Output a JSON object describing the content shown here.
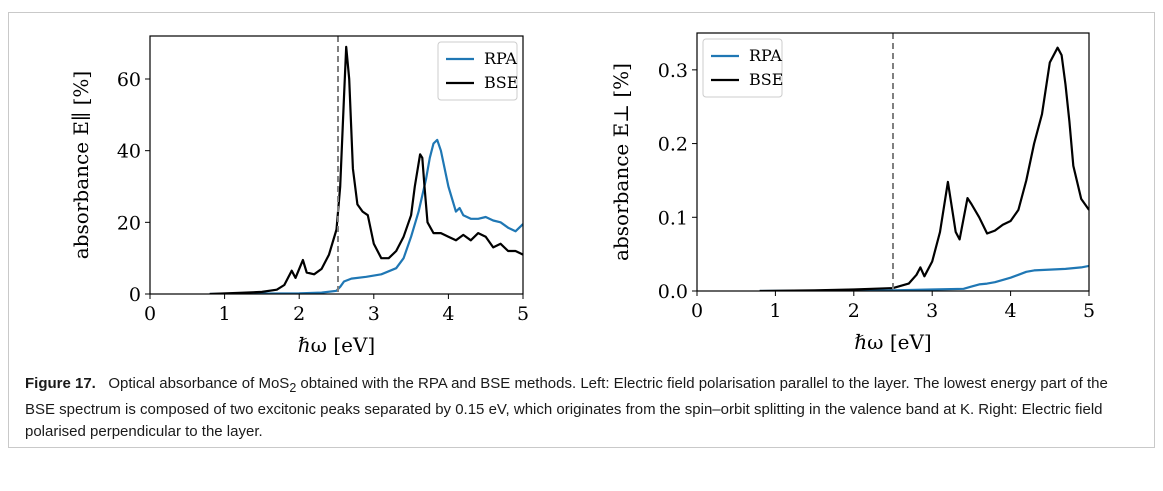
{
  "figure": {
    "label": "Figure 17.",
    "caption_parts": {
      "before_formula": "Optical absorbance of MoS",
      "formula_sub": "2",
      "after_formula": " obtained with the RPA and BSE methods. Left: Electric field polarisation parallel to the layer. The lowest energy part of the BSE spectrum is composed of two excitonic peaks separated by 0.15 eV, which originates from the spin–orbit splitting in the valence band at K. Right: Electric field polarised perpendicular to the layer."
    }
  },
  "chart_data": [
    {
      "type": "line",
      "title": "",
      "xlabel": "ℏω  [eV]",
      "ylabel": "absorbance E∥  [%]",
      "xlim": [
        0,
        5
      ],
      "ylim": [
        0,
        72
      ],
      "xticks": [
        "0",
        "1",
        "2",
        "3",
        "4",
        "5"
      ],
      "yticks": [
        "0",
        "20",
        "40",
        "60"
      ],
      "ytick_values": [
        0,
        20,
        40,
        60
      ],
      "vline_x": 2.52,
      "legend": "top-right",
      "colors": {
        "RPA": "#1f77b4",
        "BSE": "#000000",
        "vline": "#808080"
      },
      "series": [
        {
          "name": "RPA",
          "x": [
            0.8,
            1.5,
            2.0,
            2.3,
            2.5,
            2.55,
            2.6,
            2.7,
            2.9,
            3.1,
            3.3,
            3.4,
            3.5,
            3.6,
            3.7,
            3.75,
            3.8,
            3.85,
            3.9,
            4.0,
            4.1,
            4.15,
            4.2,
            4.3,
            4.4,
            4.5,
            4.6,
            4.7,
            4.8,
            4.9,
            5.0
          ],
          "y": [
            0,
            0.1,
            0.2,
            0.4,
            0.9,
            2,
            3.5,
            4.3,
            4.8,
            5.5,
            7.2,
            10,
            16,
            23,
            32,
            38,
            42,
            43,
            40,
            30,
            23,
            24,
            22,
            21,
            21,
            21.5,
            20.5,
            20,
            18.5,
            17.5,
            19.5
          ]
        },
        {
          "name": "BSE",
          "x": [
            0.8,
            1.2,
            1.5,
            1.7,
            1.8,
            1.85,
            1.9,
            1.95,
            2.0,
            2.05,
            2.1,
            2.2,
            2.3,
            2.4,
            2.5,
            2.55,
            2.6,
            2.63,
            2.67,
            2.72,
            2.78,
            2.85,
            2.92,
            3.0,
            3.1,
            3.2,
            3.3,
            3.4,
            3.5,
            3.55,
            3.62,
            3.65,
            3.68,
            3.72,
            3.8,
            3.9,
            4.0,
            4.1,
            4.2,
            4.3,
            4.4,
            4.5,
            4.6,
            4.7,
            4.8,
            4.9,
            5.0
          ],
          "y": [
            0,
            0.3,
            0.6,
            1.2,
            2.5,
            4.5,
            6.5,
            4.5,
            7,
            9.5,
            6,
            5.5,
            7,
            11,
            18,
            30,
            55,
            69,
            60,
            35,
            25,
            23,
            22,
            14,
            10,
            10,
            12,
            16,
            22,
            30,
            39,
            38,
            30,
            20,
            17,
            17,
            16,
            15,
            16.5,
            15,
            17,
            16,
            13,
            14,
            12,
            12,
            11
          ]
        }
      ]
    },
    {
      "type": "line",
      "title": "",
      "xlabel": "ℏω  [eV]",
      "ylabel": "absorbance E⊥  [%]",
      "xlim": [
        0,
        5
      ],
      "ylim": [
        0,
        0.35
      ],
      "xticks": [
        "0",
        "1",
        "2",
        "3",
        "4",
        "5"
      ],
      "yticks": [
        "0.0",
        "0.1",
        "0.2",
        "0.3"
      ],
      "ytick_values": [
        0,
        0.1,
        0.2,
        0.3
      ],
      "vline_x": 2.5,
      "legend": "top-left",
      "colors": {
        "RPA": "#1f77b4",
        "BSE": "#000000",
        "vline": "#808080"
      },
      "series": [
        {
          "name": "RPA",
          "x": [
            0.8,
            2.5,
            3.0,
            3.4,
            3.5,
            3.6,
            3.7,
            3.8,
            3.9,
            4.0,
            4.1,
            4.2,
            4.3,
            4.5,
            4.7,
            4.9,
            5.0
          ],
          "y": [
            0,
            0.001,
            0.002,
            0.003,
            0.006,
            0.009,
            0.01,
            0.012,
            0.015,
            0.018,
            0.022,
            0.026,
            0.028,
            0.029,
            0.03,
            0.032,
            0.034
          ]
        },
        {
          "name": "BSE",
          "x": [
            0.8,
            1.5,
            2.0,
            2.5,
            2.7,
            2.8,
            2.85,
            2.9,
            3.0,
            3.1,
            3.2,
            3.3,
            3.35,
            3.45,
            3.5,
            3.6,
            3.7,
            3.8,
            3.9,
            4.0,
            4.1,
            4.2,
            4.3,
            4.4,
            4.5,
            4.6,
            4.65,
            4.7,
            4.75,
            4.8,
            4.9,
            5.0
          ],
          "y": [
            0,
            0.001,
            0.002,
            0.004,
            0.01,
            0.022,
            0.032,
            0.02,
            0.04,
            0.08,
            0.148,
            0.08,
            0.07,
            0.126,
            0.118,
            0.1,
            0.078,
            0.082,
            0.09,
            0.095,
            0.11,
            0.15,
            0.2,
            0.24,
            0.31,
            0.33,
            0.32,
            0.28,
            0.23,
            0.17,
            0.125,
            0.11
          ]
        }
      ]
    }
  ]
}
